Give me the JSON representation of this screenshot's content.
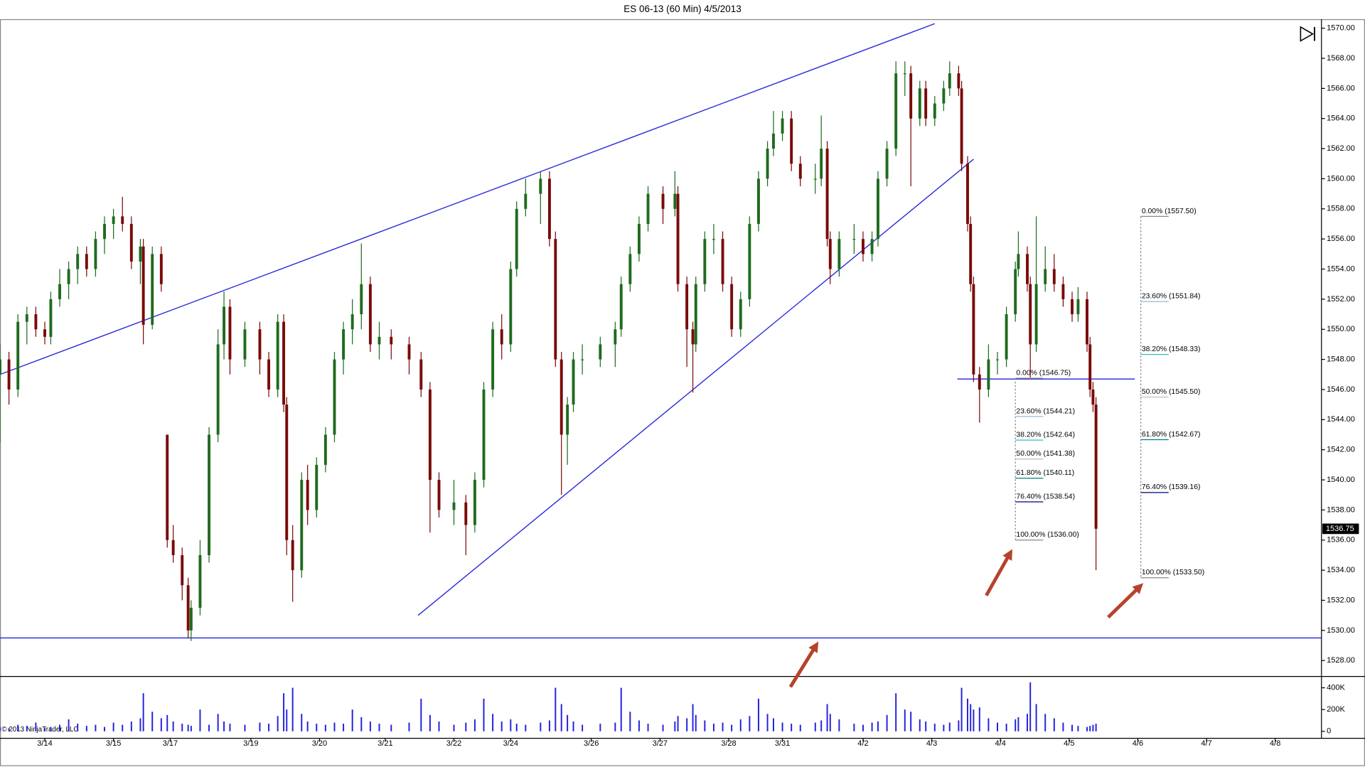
{
  "chart_data": {
    "type": "candlestick",
    "title": "ES 06-13 (60 Min)  4/5/2013",
    "copyright": "© 2013 NinjaTrader, LLC",
    "up_color": "#1f6b1f",
    "down_color": "#7a0a0a",
    "xlim": [
      0,
      442.5
    ],
    "xticks": [
      {
        "value": 15,
        "label": "3/14"
      },
      {
        "value": 38,
        "label": "3/15"
      },
      {
        "value": 57,
        "label": "3/17"
      },
      {
        "value": 84,
        "label": "3/19"
      },
      {
        "value": 107,
        "label": "3/20"
      },
      {
        "value": 129,
        "label": "3/21"
      },
      {
        "value": 152,
        "label": "3/22"
      },
      {
        "value": 171,
        "label": "3/24"
      },
      {
        "value": 198,
        "label": "3/26"
      },
      {
        "value": 221,
        "label": "3/27"
      },
      {
        "value": 244,
        "label": "3/28"
      },
      {
        "value": 262,
        "label": "3/31"
      },
      {
        "value": 289,
        "label": "4/2"
      },
      {
        "value": 312,
        "label": "4/3"
      },
      {
        "value": 335,
        "label": "4/4"
      },
      {
        "value": 358,
        "label": "4/5"
      },
      {
        "value": 381,
        "label": "4/6"
      },
      {
        "value": 404,
        "label": "4/7"
      },
      {
        "value": 427,
        "label": "4/8"
      }
    ],
    "ylim": [
      1527,
      1570.6
    ],
    "yticks": [
      {
        "value": 1528,
        "label": "1528.00"
      },
      {
        "value": 1530,
        "label": "1530.00"
      },
      {
        "value": 1532,
        "label": "1532.00"
      },
      {
        "value": 1534,
        "label": "1534.00"
      },
      {
        "value": 1536,
        "label": "1536.00"
      },
      {
        "value": 1538,
        "label": "1538.00"
      },
      {
        "value": 1540,
        "label": "1540.00"
      },
      {
        "value": 1542,
        "label": "1542.00"
      },
      {
        "value": 1544,
        "label": "1544.00"
      },
      {
        "value": 1546,
        "label": "1546.00"
      },
      {
        "value": 1548,
        "label": "1548.00"
      },
      {
        "value": 1550,
        "label": "1550.00"
      },
      {
        "value": 1552,
        "label": "1552.00"
      },
      {
        "value": 1554,
        "label": "1554.00"
      },
      {
        "value": 1556,
        "label": "1556.00"
      },
      {
        "value": 1558,
        "label": "1558.00"
      },
      {
        "value": 1560,
        "label": "1560.00"
      },
      {
        "value": 1562,
        "label": "1562.00"
      },
      {
        "value": 1564,
        "label": "1564.00"
      },
      {
        "value": 1566,
        "label": "1566.00"
      },
      {
        "value": 1568,
        "label": "1568.00"
      },
      {
        "value": 1570,
        "label": "1570.00"
      }
    ],
    "last_price": 1536.75,
    "x": [
      0,
      3,
      6,
      9,
      12,
      15,
      17,
      20,
      23,
      26,
      29,
      32,
      35,
      38,
      41,
      44,
      47,
      48,
      51,
      54,
      56,
      58,
      61,
      63,
      64,
      67,
      70,
      73,
      75,
      77,
      82,
      87,
      90,
      93,
      95,
      96,
      98,
      101,
      103,
      106,
      109,
      112,
      115,
      118,
      121,
      124,
      127,
      131,
      137,
      141,
      144,
      147,
      152,
      156,
      159,
      162,
      165,
      168,
      171,
      173,
      176,
      181,
      184,
      186,
      188,
      190,
      192,
      195,
      201,
      206,
      208,
      211,
      214,
      217,
      222,
      226,
      227,
      230,
      232,
      233,
      236,
      239,
      242,
      245,
      248,
      251,
      254,
      257,
      259,
      262,
      265,
      268,
      273,
      275,
      277,
      278,
      281,
      286,
      289,
      292,
      294,
      297,
      300,
      303,
      305,
      308,
      310,
      313,
      316,
      318,
      321,
      322,
      324,
      325,
      326,
      328,
      331,
      334,
      337,
      340,
      341,
      344,
      345,
      347,
      350,
      353,
      356,
      359,
      361,
      364,
      365,
      366,
      367
    ],
    "ohlc": [
      [
        1547,
        1549,
        1542.5,
        1548
      ],
      [
        1548,
        1548.5,
        1545,
        1546
      ],
      [
        1546,
        1551,
        1545.5,
        1550.5
      ],
      [
        1550.5,
        1551.5,
        1549,
        1551
      ],
      [
        1551,
        1551.5,
        1549.5,
        1550
      ],
      [
        1550,
        1550.5,
        1549,
        1549.5
      ],
      [
        1549.5,
        1552.5,
        1549,
        1552
      ],
      [
        1552,
        1554,
        1551.5,
        1553
      ],
      [
        1553,
        1554.5,
        1552,
        1554
      ],
      [
        1554,
        1555.5,
        1553,
        1555
      ],
      [
        1555,
        1555.5,
        1553.5,
        1554
      ],
      [
        1554,
        1556.5,
        1553.5,
        1556
      ],
      [
        1556,
        1557.5,
        1555,
        1557
      ],
      [
        1557,
        1558,
        1556,
        1557.5
      ],
      [
        1557.5,
        1558.8,
        1556.5,
        1557
      ],
      [
        1557,
        1557.5,
        1554,
        1554.5
      ],
      [
        1554.5,
        1556,
        1553,
        1555.5
      ],
      [
        1555.5,
        1556,
        1549,
        1550.3
      ],
      [
        1550.3,
        1555.5,
        1550,
        1555
      ],
      [
        1555,
        1555.5,
        1552.5,
        1553
      ],
      [
        1543,
        1543,
        1535.5,
        1536
      ],
      [
        1536,
        1537,
        1534.5,
        1535
      ],
      [
        1535,
        1535.5,
        1532,
        1533
      ],
      [
        1533,
        1533.5,
        1529.5,
        1530
      ],
      [
        1530,
        1532,
        1529.3,
        1531.5
      ],
      [
        1531.5,
        1536,
        1531,
        1535
      ],
      [
        1535,
        1543.5,
        1534.5,
        1543
      ],
      [
        1543,
        1550,
        1542.5,
        1549
      ],
      [
        1549,
        1552.5,
        1548,
        1551.5
      ],
      [
        1551.5,
        1552,
        1547,
        1548
      ],
      [
        1548,
        1550.5,
        1547.5,
        1550
      ],
      [
        1550,
        1550.5,
        1547,
        1548
      ],
      [
        1548,
        1548.5,
        1545.5,
        1546
      ],
      [
        1546,
        1551,
        1545.5,
        1550.5
      ],
      [
        1550.5,
        1551,
        1544.5,
        1545
      ],
      [
        1545,
        1545.5,
        1535,
        1536
      ],
      [
        1536,
        1537,
        1531.9,
        1534
      ],
      [
        1534,
        1540.5,
        1533.5,
        1540
      ],
      [
        1540,
        1541,
        1537,
        1538
      ],
      [
        1538,
        1541.5,
        1537.5,
        1541
      ],
      [
        1541,
        1543.5,
        1540.5,
        1543
      ],
      [
        1543,
        1548.5,
        1542.5,
        1548
      ],
      [
        1548,
        1550.5,
        1547,
        1550
      ],
      [
        1550,
        1552,
        1549,
        1551
      ],
      [
        1551,
        1555.7,
        1550,
        1553
      ],
      [
        1553,
        1553.5,
        1548.5,
        1549
      ],
      [
        1549,
        1550.5,
        1548,
        1549.5
      ],
      [
        1549.5,
        1550,
        1548,
        1549
      ],
      [
        1549,
        1549.5,
        1547,
        1548
      ],
      [
        1548,
        1548.5,
        1545.5,
        1546
      ],
      [
        1546,
        1546.5,
        1536.5,
        1540
      ],
      [
        1540,
        1540.5,
        1537.5,
        1538
      ],
      [
        1538,
        1540,
        1537,
        1538.5
      ],
      [
        1538.5,
        1539,
        1535,
        1537
      ],
      [
        1537,
        1540.5,
        1536.5,
        1540
      ],
      [
        1540,
        1546.5,
        1539.5,
        1546
      ],
      [
        1546,
        1550.5,
        1545.5,
        1550
      ],
      [
        1550,
        1551,
        1548,
        1549
      ],
      [
        1549,
        1554.5,
        1548.5,
        1554
      ],
      [
        1554,
        1558.5,
        1553.5,
        1558
      ],
      [
        1558,
        1560,
        1557.5,
        1559
      ],
      [
        1559,
        1560.5,
        1557,
        1560
      ],
      [
        1560,
        1560.5,
        1555.5,
        1556
      ],
      [
        1556,
        1556.5,
        1547.5,
        1548
      ],
      [
        1548,
        1548.5,
        1539,
        1543
      ],
      [
        1543,
        1545.5,
        1541,
        1545
      ],
      [
        1545,
        1548.5,
        1544.5,
        1548
      ],
      [
        1548,
        1549,
        1547,
        1548
      ],
      [
        1548,
        1549.5,
        1547.5,
        1549
      ],
      [
        1549,
        1550.5,
        1547.5,
        1550
      ],
      [
        1550,
        1553.5,
        1549.5,
        1553
      ],
      [
        1553,
        1555.5,
        1552.5,
        1555
      ],
      [
        1555,
        1557.5,
        1554.5,
        1557
      ],
      [
        1557,
        1559.5,
        1556.5,
        1559
      ],
      [
        1559,
        1559.5,
        1557,
        1558
      ],
      [
        1558,
        1560.5,
        1557.5,
        1559
      ],
      [
        1559,
        1559.5,
        1552.5,
        1553
      ],
      [
        1553,
        1553.5,
        1547.5,
        1550
      ],
      [
        1550,
        1550.5,
        1545.8,
        1549
      ],
      [
        1549,
        1553.5,
        1548.5,
        1553
      ],
      [
        1553,
        1556.5,
        1552.5,
        1556
      ],
      [
        1556,
        1557,
        1555,
        1556
      ],
      [
        1556,
        1556.5,
        1552.5,
        1553
      ],
      [
        1553,
        1553.5,
        1549.5,
        1550
      ],
      [
        1550,
        1552.5,
        1549.5,
        1552
      ],
      [
        1552,
        1557.5,
        1551.5,
        1557
      ],
      [
        1557,
        1560.5,
        1556.5,
        1560
      ],
      [
        1560,
        1562.5,
        1559.5,
        1562
      ],
      [
        1562,
        1564.5,
        1561.5,
        1563
      ],
      [
        1563,
        1564.5,
        1562.5,
        1564
      ],
      [
        1564,
        1564.5,
        1560.5,
        1561
      ],
      [
        1561,
        1561.5,
        1559.5,
        1560
      ],
      [
        1560,
        1561,
        1559,
        1560
      ],
      [
        1560,
        1564.2,
        1559.5,
        1562
      ],
      [
        1562,
        1562.5,
        1555.5,
        1556
      ],
      [
        1556,
        1556.5,
        1553,
        1554
      ],
      [
        1554,
        1556.5,
        1553.5,
        1556
      ],
      [
        1556,
        1557,
        1555,
        1556
      ],
      [
        1556,
        1556.5,
        1554.5,
        1555
      ],
      [
        1555,
        1556.5,
        1554.5,
        1556
      ],
      [
        1556,
        1560.5,
        1555.5,
        1560
      ],
      [
        1560,
        1562.5,
        1559.5,
        1562
      ],
      [
        1562,
        1567.8,
        1561.5,
        1567
      ],
      [
        1567,
        1567.8,
        1565.5,
        1567
      ],
      [
        1567,
        1567.5,
        1559.5,
        1564
      ],
      [
        1564,
        1566.5,
        1563.5,
        1566
      ],
      [
        1566,
        1566.5,
        1563.5,
        1564
      ],
      [
        1564,
        1565.5,
        1563.5,
        1565
      ],
      [
        1565,
        1566.5,
        1564.5,
        1566
      ],
      [
        1566,
        1567.8,
        1565.5,
        1567
      ],
      [
        1567,
        1567.5,
        1565.5,
        1566
      ],
      [
        1566,
        1566.5,
        1560.5,
        1561
      ],
      [
        1561,
        1561.5,
        1556.5,
        1557
      ],
      [
        1557,
        1557.5,
        1552.5,
        1553
      ],
      [
        1553,
        1553.5,
        1546.5,
        1547
      ],
      [
        1547,
        1547.5,
        1543.8,
        1546
      ],
      [
        1546,
        1549,
        1545.5,
        1548
      ],
      [
        1548,
        1548.5,
        1547,
        1548
      ],
      [
        1548,
        1551.5,
        1547.5,
        1551
      ],
      [
        1551,
        1554.5,
        1550.5,
        1554
      ],
      [
        1554,
        1556.5,
        1553.5,
        1555
      ],
      [
        1555,
        1555.5,
        1552.5,
        1553
      ],
      [
        1553,
        1553.5,
        1546.8,
        1549
      ],
      [
        1549,
        1557.5,
        1548.5,
        1553
      ],
      [
        1553,
        1555.5,
        1552.5,
        1554
      ],
      [
        1554,
        1555,
        1552.5,
        1553
      ],
      [
        1553,
        1553.5,
        1551.5,
        1552
      ],
      [
        1552,
        1552.5,
        1550.5,
        1551
      ],
      [
        1551,
        1552.8,
        1550.5,
        1552
      ],
      [
        1552,
        1552.5,
        1548.5,
        1549
      ],
      [
        1549,
        1549.5,
        1545.5,
        1546
      ],
      [
        1546,
        1546.5,
        1544.5,
        1545
      ],
      [
        1545,
        1545.5,
        1534,
        1536.75
      ]
    ],
    "trendlines": [
      {
        "color": "#2222dd",
        "x": [
          0,
          313
        ],
        "y": [
          1547,
          1570.3
        ]
      },
      {
        "color": "#2222dd",
        "x": [
          140,
          326
        ],
        "y": [
          1531,
          1561.3
        ]
      },
      {
        "color": "#2222dd",
        "x": [
          0,
          442.5
        ],
        "y": [
          1529.5,
          1529.5
        ]
      },
      {
        "color": "#2222dd",
        "x": [
          320.6,
          380
        ],
        "y": [
          1546.7,
          1546.7
        ]
      }
    ],
    "fibs": [
      {
        "x": 340,
        "levels": [
          {
            "value": 1546.75,
            "label": "0.00% (1546.75)",
            "color": "#888888"
          },
          {
            "value": 1544.21,
            "label": "23.60% (1544.21)",
            "color": "#9ab8d8"
          },
          {
            "value": 1542.64,
            "label": "38.20% (1542.64)",
            "color": "#33bbbb"
          },
          {
            "value": 1541.38,
            "label": "50.00% (1541.38)",
            "color": "#bbbbbb"
          },
          {
            "value": 1540.11,
            "label": "61.80% (1540.11)",
            "color": "#008080"
          },
          {
            "value": 1538.54,
            "label": "76.40% (1538.54)",
            "color": "#000080"
          },
          {
            "value": 1536.0,
            "label": "100.00% (1536.00)",
            "color": "#888888"
          }
        ]
      },
      {
        "x": 382,
        "levels": [
          {
            "value": 1557.5,
            "label": "0.00% (1557.50)",
            "color": "#888888"
          },
          {
            "value": 1551.84,
            "label": "23.60% (1551.84)",
            "color": "#9ab8d8"
          },
          {
            "value": 1548.33,
            "label": "38.20% (1548.33)",
            "color": "#33bbbb"
          },
          {
            "value": 1545.5,
            "label": "50.00% (1545.50)",
            "color": "#bbbbbb"
          },
          {
            "value": 1542.67,
            "label": "61.80% (1542.67)",
            "color": "#008080"
          },
          {
            "value": 1539.16,
            "label": "76.40% (1539.16)",
            "color": "#000080"
          },
          {
            "value": 1533.5,
            "label": "100.00% (1533.50)",
            "color": "#888888"
          }
        ]
      }
    ],
    "volume": {
      "color": "#2222dd",
      "ylim": [
        -64000,
        496000
      ],
      "yticks": [
        0,
        {
          "value": 200000,
          "label": "200K"
        },
        {
          "value": 400000,
          "label": "400K"
        }
      ],
      "values": [
        40000,
        30000,
        60000,
        50000,
        80000,
        30000,
        40000,
        60000,
        110000,
        70000,
        50000,
        60000,
        40000,
        80000,
        60000,
        90000,
        120000,
        350000,
        180000,
        120000,
        150000,
        90000,
        70000,
        60000,
        50000,
        200000,
        60000,
        160000,
        90000,
        70000,
        60000,
        80000,
        70000,
        140000,
        350000,
        200000,
        400000,
        160000,
        90000,
        70000,
        60000,
        80000,
        70000,
        200000,
        130000,
        90000,
        70000,
        60000,
        80000,
        300000,
        150000,
        90000,
        60000,
        80000,
        110000,
        300000,
        160000,
        90000,
        110000,
        70000,
        60000,
        80000,
        100000,
        400000,
        250000,
        150000,
        90000,
        60000,
        70000,
        80000,
        400000,
        180000,
        100000,
        70000,
        60000,
        90000,
        140000,
        120000,
        250000,
        150000,
        100000,
        70000,
        80000,
        60000,
        110000,
        140000,
        300000,
        160000,
        120000,
        80000,
        70000,
        60000,
        80000,
        100000,
        250000,
        160000,
        110000,
        70000,
        60000,
        80000,
        90000,
        150000,
        350000,
        200000,
        180000,
        110000,
        90000,
        70000,
        60000,
        80000,
        100000,
        400000,
        300000,
        250000,
        200000,
        220000,
        120000,
        80000,
        70000,
        110000,
        130000,
        160000,
        450000,
        250000,
        160000,
        120000,
        80000,
        60000,
        50000,
        40000,
        50000,
        60000,
        70000
      ]
    }
  }
}
